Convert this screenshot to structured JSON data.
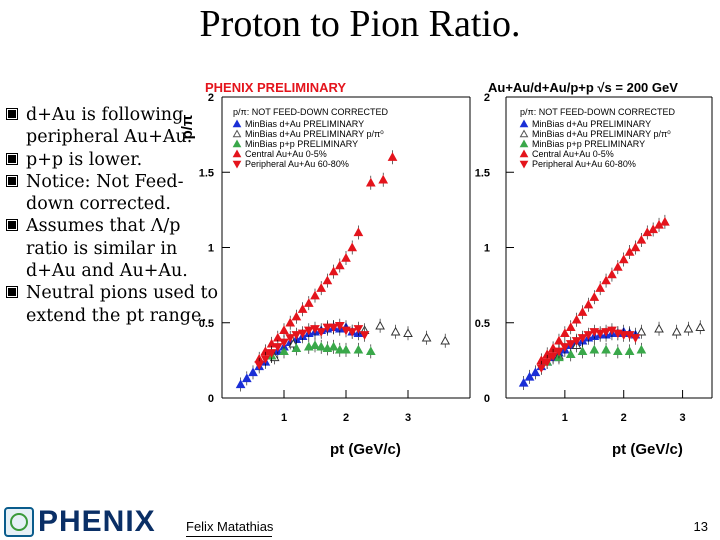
{
  "slide": {
    "title": "Proton to Pion Ratio.",
    "bullets": [
      "d+Au is following peripheral Au+Au.",
      "p+p is lower.",
      "Notice: Not Feed-down corrected.",
      "Assumes that Λ/p ratio is  similar in d+Au and Au+Au.",
      "Neutral pions  used to extend   the pt range."
    ],
    "footer": {
      "author": "Felix Matathias",
      "page": "13",
      "logo": "PHENIX"
    }
  },
  "colors": {
    "blue": "#1a2fd6",
    "green": "#3aa84a",
    "red": "#e4141c",
    "logo_blue": "#0a2f66"
  },
  "chart_data": [
    {
      "type": "scatter",
      "title": "PHENIX PRELIMINARY",
      "ylabel": "p/π",
      "xlabel": "pt (GeV/c)",
      "xlim": [
        0,
        4.0
      ],
      "ylim": [
        0,
        2
      ],
      "xticks": [
        "1",
        "2",
        "3"
      ],
      "yticks": [
        "0",
        "0.5",
        "1",
        "1.5",
        "2"
      ],
      "legend_header": "p/π: NOT FEED-DOWN CORRECTED",
      "legend_position": "top-left",
      "series": [
        {
          "name": "MinBias d+Au PRELIMINARY",
          "color": "#1a2fd6",
          "marker": "triangle-up-filled",
          "x": [
            0.3,
            0.4,
            0.5,
            0.6,
            0.7,
            0.8,
            0.9,
            1.0,
            1.1,
            1.2,
            1.3,
            1.4,
            1.5,
            1.6,
            1.7,
            1.8,
            1.9,
            2.0,
            2.1,
            2.2
          ],
          "y": [
            0.09,
            0.13,
            0.17,
            0.21,
            0.24,
            0.28,
            0.31,
            0.34,
            0.37,
            0.39,
            0.41,
            0.43,
            0.44,
            0.45,
            0.46,
            0.47,
            0.46,
            0.47,
            0.44,
            0.43
          ]
        },
        {
          "name": "MinBias d+Au PRELIMINARY p/π⁰",
          "color": "#555555",
          "marker": "triangle-up-open",
          "x": [
            0.85,
            1.15,
            2.3,
            2.55,
            2.8,
            3.0,
            3.3,
            3.6
          ],
          "y": [
            0.27,
            0.36,
            0.45,
            0.48,
            0.44,
            0.43,
            0.4,
            0.38
          ]
        },
        {
          "name": "MinBias p+p PRELIMINARY",
          "color": "#3aa84a",
          "marker": "triangle-up-filled",
          "x": [
            0.8,
            1.0,
            1.2,
            1.4,
            1.5,
            1.6,
            1.7,
            1.8,
            1.9,
            2.0,
            2.2,
            2.4
          ],
          "y": [
            0.28,
            0.31,
            0.33,
            0.34,
            0.35,
            0.34,
            0.33,
            0.34,
            0.32,
            0.32,
            0.32,
            0.31
          ]
        },
        {
          "name": "Central    Au+Au 0-5%",
          "color": "#e4141c",
          "marker": "triangle-up-filled",
          "x": [
            0.6,
            0.7,
            0.8,
            0.9,
            1.0,
            1.1,
            1.2,
            1.3,
            1.4,
            1.5,
            1.6,
            1.7,
            1.8,
            1.9,
            2.0,
            2.1,
            2.2,
            2.4,
            2.6,
            2.75
          ],
          "y": [
            0.26,
            0.31,
            0.36,
            0.4,
            0.45,
            0.5,
            0.54,
            0.59,
            0.63,
            0.68,
            0.73,
            0.78,
            0.84,
            0.88,
            0.93,
            1.0,
            1.1,
            1.43,
            1.45,
            1.6
          ]
        },
        {
          "name": "Peripheral Au+Au 60-80%",
          "color": "#e4141c",
          "marker": "triangle-down-filled",
          "x": [
            0.6,
            0.7,
            0.8,
            0.9,
            1.0,
            1.1,
            1.2,
            1.3,
            1.4,
            1.5,
            1.6,
            1.7,
            1.8,
            1.9,
            2.0,
            2.1,
            2.2,
            2.3
          ],
          "y": [
            0.22,
            0.26,
            0.3,
            0.34,
            0.37,
            0.4,
            0.42,
            0.43,
            0.45,
            0.46,
            0.44,
            0.47,
            0.47,
            0.48,
            0.45,
            0.44,
            0.46,
            0.42
          ]
        }
      ]
    },
    {
      "type": "scatter",
      "title": "Au+Au/d+Au/p+p √s = 200 GeV",
      "ylabel": "",
      "xlabel": "pt (GeV/c)",
      "xlim": [
        0,
        3.5
      ],
      "ylim": [
        0,
        2
      ],
      "xticks": [
        "1",
        "2",
        "3"
      ],
      "yticks": [
        "0",
        "0.5",
        "1",
        "1.5",
        "2"
      ],
      "legend_header": "p/π: NOT FEED-DOWN CORRECTED",
      "legend_position": "top-left",
      "series": [
        {
          "name": "MinBias d+Au PRELIMINARY",
          "color": "#1a2fd6",
          "marker": "triangle-up-filled",
          "x": [
            0.3,
            0.4,
            0.5,
            0.6,
            0.7,
            0.8,
            0.9,
            1.0,
            1.1,
            1.2,
            1.3,
            1.4,
            1.5,
            1.6,
            1.7,
            1.8,
            1.9,
            2.0,
            2.1,
            2.2
          ],
          "y": [
            0.1,
            0.14,
            0.17,
            0.21,
            0.24,
            0.27,
            0.3,
            0.32,
            0.35,
            0.37,
            0.38,
            0.4,
            0.41,
            0.42,
            0.42,
            0.43,
            0.43,
            0.44,
            0.43,
            0.42
          ]
        },
        {
          "name": "MinBias d+Au PRELIMINARY p/π⁰",
          "color": "#555555",
          "marker": "triangle-up-open",
          "x": [
            0.9,
            1.2,
            2.3,
            2.6,
            2.9,
            3.1,
            3.3
          ],
          "y": [
            0.28,
            0.35,
            0.44,
            0.46,
            0.44,
            0.46,
            0.47
          ]
        },
        {
          "name": "MinBias p+p PRELIMINARY",
          "color": "#3aa84a",
          "marker": "triangle-up-filled",
          "x": [
            0.7,
            0.9,
            1.1,
            1.3,
            1.5,
            1.7,
            1.9,
            2.1,
            2.3
          ],
          "y": [
            0.24,
            0.27,
            0.29,
            0.31,
            0.32,
            0.32,
            0.31,
            0.31,
            0.32
          ]
        },
        {
          "name": "Central    Au+Au 0-5%",
          "color": "#e4141c",
          "marker": "triangle-up-filled",
          "x": [
            0.6,
            0.7,
            0.8,
            0.9,
            1.0,
            1.1,
            1.2,
            1.3,
            1.4,
            1.5,
            1.6,
            1.7,
            1.8,
            1.9,
            2.0,
            2.1,
            2.2,
            2.3,
            2.4,
            2.5,
            2.6,
            2.7
          ],
          "y": [
            0.25,
            0.29,
            0.33,
            0.38,
            0.43,
            0.47,
            0.52,
            0.57,
            0.62,
            0.67,
            0.73,
            0.78,
            0.82,
            0.87,
            0.92,
            0.97,
            1.0,
            1.05,
            1.1,
            1.12,
            1.15,
            1.17
          ]
        },
        {
          "name": "Peripheral Au+Au 60-80%",
          "color": "#e4141c",
          "marker": "triangle-down-filled",
          "x": [
            0.6,
            0.7,
            0.8,
            0.9,
            1.0,
            1.1,
            1.2,
            1.3,
            1.4,
            1.5,
            1.6,
            1.7,
            1.8,
            1.9,
            2.0,
            2.1,
            2.2
          ],
          "y": [
            0.2,
            0.24,
            0.28,
            0.31,
            0.34,
            0.36,
            0.38,
            0.4,
            0.42,
            0.44,
            0.43,
            0.44,
            0.45,
            0.43,
            0.42,
            0.42,
            0.4
          ]
        }
      ]
    }
  ]
}
